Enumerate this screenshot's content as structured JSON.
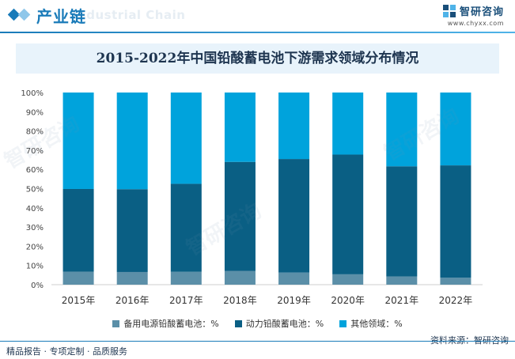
{
  "header": {
    "section_title": "产业链",
    "section_subtitle_en": "Industrial Chain",
    "brand_name": "智研咨询",
    "brand_url": "www.chyxx.com"
  },
  "watermark": {
    "text": "智研咨询"
  },
  "chart_data": {
    "type": "bar",
    "stacked": true,
    "title": "2015-2022年中国铅酸蓄电池下游需求领域分布情况",
    "categories": [
      "2015年",
      "2016年",
      "2017年",
      "2018年",
      "2019年",
      "2020年",
      "2021年",
      "2022年"
    ],
    "series": [
      {
        "name": "备用电源铅酸蓄电池：%",
        "color": "#5b8fa8",
        "values": [
          6.8,
          6.6,
          6.7,
          7.2,
          6.3,
          5.4,
          4.3,
          3.6
        ]
      },
      {
        "name": "动力铅酸蓄电池：%",
        "color": "#0a5f84",
        "values": [
          43.0,
          43.1,
          45.8,
          56.7,
          59.1,
          62.3,
          57.3,
          58.5
        ]
      },
      {
        "name": "其他领域：%",
        "color": "#00a3dc",
        "values": [
          50.2,
          50.3,
          47.5,
          36.1,
          34.6,
          32.3,
          38.4,
          37.9
        ]
      }
    ],
    "yticks": [
      "0%",
      "10%",
      "20%",
      "30%",
      "40%",
      "50%",
      "60%",
      "70%",
      "80%",
      "90%",
      "100%"
    ],
    "ylim": [
      0,
      100
    ],
    "legend_position": "bottom"
  },
  "footer": {
    "left": "精品报告 · 专项定制 · 品质服务",
    "right": "资料来源：智研咨询"
  }
}
